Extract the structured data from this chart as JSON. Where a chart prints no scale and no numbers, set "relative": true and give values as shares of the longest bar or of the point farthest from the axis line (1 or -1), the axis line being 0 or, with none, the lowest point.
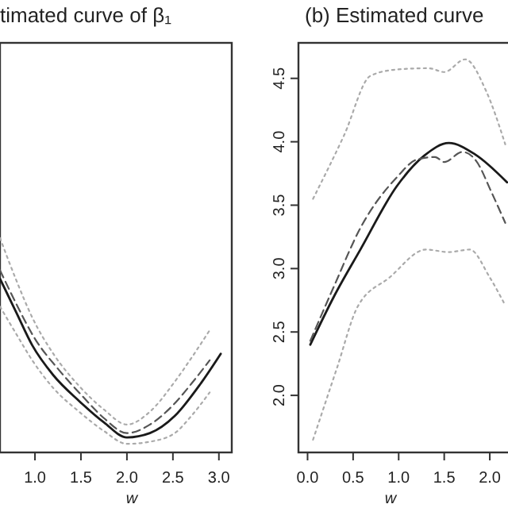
{
  "chart_data": [
    {
      "type": "line",
      "title": "timated curve of β₁",
      "xlabel": "w",
      "relative": true,
      "xlim": [
        0.62,
        3.14
      ],
      "xticks": [
        {
          "value": 1,
          "label": "1.0"
        },
        {
          "value": 1.5,
          "label": "1.5"
        },
        {
          "value": 2,
          "label": "2.0"
        },
        {
          "value": 2.5,
          "label": "2.5"
        },
        {
          "value": 3,
          "label": "3.0"
        }
      ],
      "grid": false,
      "series": [
        {
          "color": "#1a1a1a",
          "line_style": "solid",
          "x": [
            0.62,
            0.8,
            0.97,
            1.2,
            1.48,
            1.75,
            2.0,
            2.25,
            2.52,
            2.8,
            3.02
          ],
          "values": [
            0.81,
            0.65,
            0.5,
            0.36,
            0.24,
            0.14,
            0.07,
            0.09,
            0.17,
            0.32,
            0.46
          ]
        },
        {
          "color": "#555555",
          "line_style": "dashed",
          "x": [
            0.62,
            0.8,
            1.0,
            1.25,
            1.5,
            1.75,
            2.0,
            2.25,
            2.5,
            2.7,
            2.9
          ],
          "values": [
            0.85,
            0.69,
            0.53,
            0.39,
            0.27,
            0.16,
            0.09,
            0.13,
            0.22,
            0.32,
            0.43
          ]
        },
        {
          "color": "#aaaaaa",
          "line_style": "dotted",
          "x": [
            0.62,
            0.8,
            0.97,
            1.2,
            1.48,
            1.75,
            2.0,
            2.25,
            2.52,
            2.7,
            2.9
          ],
          "values": [
            1.0,
            0.8,
            0.63,
            0.46,
            0.31,
            0.2,
            0.13,
            0.19,
            0.33,
            0.44,
            0.57
          ]
        },
        {
          "color": "#aaaaaa",
          "line_style": "dotted",
          "x": [
            0.62,
            0.8,
            0.97,
            1.2,
            1.48,
            1.75,
            2.0,
            2.25,
            2.52,
            2.7,
            2.9
          ],
          "values": [
            0.68,
            0.55,
            0.43,
            0.3,
            0.19,
            0.1,
            0.04,
            0.05,
            0.09,
            0.17,
            0.28
          ]
        }
      ]
    },
    {
      "type": "line",
      "title": "(b) Estimated curve",
      "xlabel": "w",
      "xlim": [
        -0.1,
        2.2
      ],
      "xticks": [
        {
          "value": 0,
          "label": "0.0"
        },
        {
          "value": 0.5,
          "label": "0.5"
        },
        {
          "value": 1,
          "label": "1.0"
        },
        {
          "value": 1.5,
          "label": "1.5"
        },
        {
          "value": 2,
          "label": "2.0"
        }
      ],
      "ylim": [
        1.55,
        4.78
      ],
      "yticks": [
        {
          "value": 2,
          "label": "2.0"
        },
        {
          "value": 2.5,
          "label": "2.5"
        },
        {
          "value": 3,
          "label": "3.0"
        },
        {
          "value": 3.5,
          "label": "3.5"
        },
        {
          "value": 4,
          "label": "4.0"
        },
        {
          "value": 4.5,
          "label": "4.5"
        }
      ],
      "grid": false,
      "series": [
        {
          "color": "#1a1a1a",
          "line_style": "solid",
          "x": [
            0.03,
            0.29,
            0.58,
            0.98,
            1.28,
            1.55,
            1.84,
            2.19
          ],
          "values": [
            2.4,
            2.78,
            3.15,
            3.65,
            3.89,
            3.99,
            3.9,
            3.68
          ]
        },
        {
          "color": "#555555",
          "line_style": "dashed",
          "x": [
            0.03,
            0.29,
            0.58,
            0.98,
            1.2,
            1.4,
            1.5,
            1.7,
            1.85,
            2.02,
            2.17
          ],
          "values": [
            2.43,
            2.86,
            3.32,
            3.72,
            3.86,
            3.88,
            3.84,
            3.92,
            3.85,
            3.6,
            3.36
          ]
        },
        {
          "color": "#aaaaaa",
          "line_style": "dotted",
          "x": [
            0.06,
            0.4,
            0.69,
            0.98,
            1.33,
            1.5,
            1.73,
            1.96,
            2.17
          ],
          "values": [
            3.55,
            4.05,
            4.52,
            4.57,
            4.58,
            4.55,
            4.65,
            4.4,
            3.98
          ]
        },
        {
          "color": "#aaaaaa",
          "line_style": "dotted",
          "x": [
            0.06,
            0.32,
            0.55,
            0.9,
            1.3,
            1.55,
            1.78,
            2.0,
            2.17
          ],
          "values": [
            1.65,
            2.21,
            2.7,
            2.93,
            3.15,
            3.13,
            3.15,
            2.93,
            2.71
          ]
        }
      ]
    }
  ]
}
